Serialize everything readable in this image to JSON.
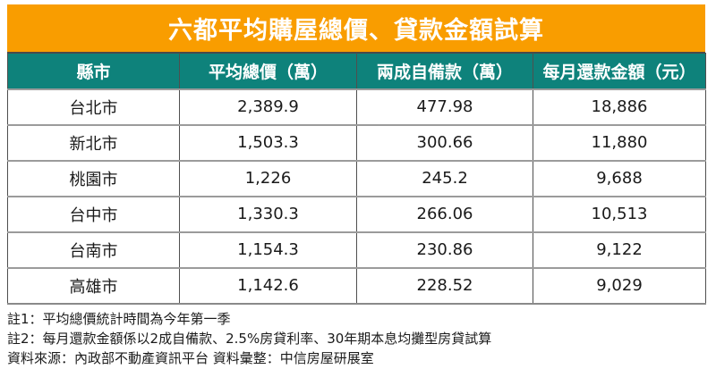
{
  "title": "六都平均購屋總價、貸款金額試算",
  "colors": {
    "title_bg": "#F99D00",
    "header_bg": "#0E827B",
    "header_text": "#FFFFFF",
    "body_text": "#1A1A1A",
    "grid_line": "#4F4F4F"
  },
  "table": {
    "columns": [
      "縣市",
      "平均總價（萬）",
      "兩成自備款（萬）",
      "每月還款金額（元）"
    ],
    "rows": [
      {
        "city": "台北市",
        "avg_price": "2,389.9",
        "down_payment": "477.98",
        "monthly_payment": "18,886"
      },
      {
        "city": "新北市",
        "avg_price": "1,503.3",
        "down_payment": "300.66",
        "monthly_payment": "11,880"
      },
      {
        "city": "桃園市",
        "avg_price": "1,226",
        "down_payment": "245.2",
        "monthly_payment": "9,688"
      },
      {
        "city": "台中市",
        "avg_price": "1,330.3",
        "down_payment": "266.06",
        "monthly_payment": "10,513"
      },
      {
        "city": "台南市",
        "avg_price": "1,154.3",
        "down_payment": "230.86",
        "monthly_payment": "9,122"
      },
      {
        "city": "高雄市",
        "avg_price": "1,142.6",
        "down_payment": "228.52",
        "monthly_payment": "9,029"
      }
    ]
  },
  "notes": {
    "note1": "註1：平均總價統計時間為今年第一季",
    "note2": "註2：每月還款金額係以2成自備款、2.5%房貸利率、30年期本息均攤型房貸試算",
    "source": "資料來源：內政部不動產資訊平台 資料彙整：中信房屋研展室"
  },
  "chart_data": {
    "type": "table",
    "title": "六都平均購屋總價、貸款金額試算",
    "columns": [
      "縣市",
      "平均總價（萬）",
      "兩成自備款（萬）",
      "每月還款金額（元）"
    ],
    "rows": [
      [
        "台北市",
        2389.9,
        477.98,
        18886
      ],
      [
        "新北市",
        1503.3,
        300.66,
        11880
      ],
      [
        "桃園市",
        1226,
        245.2,
        9688
      ],
      [
        "台中市",
        1330.3,
        266.06,
        10513
      ],
      [
        "台南市",
        1154.3,
        230.86,
        9122
      ],
      [
        "高雄市",
        1142.6,
        228.52,
        9029
      ]
    ],
    "notes": [
      "註1：平均總價統計時間為今年第一季",
      "註2：每月還款金額係以2成自備款、2.5%房貸利率、30年期本息均攤型房貸試算",
      "資料來源：內政部不動產資訊平台 資料彙整：中信房屋研展室"
    ]
  }
}
